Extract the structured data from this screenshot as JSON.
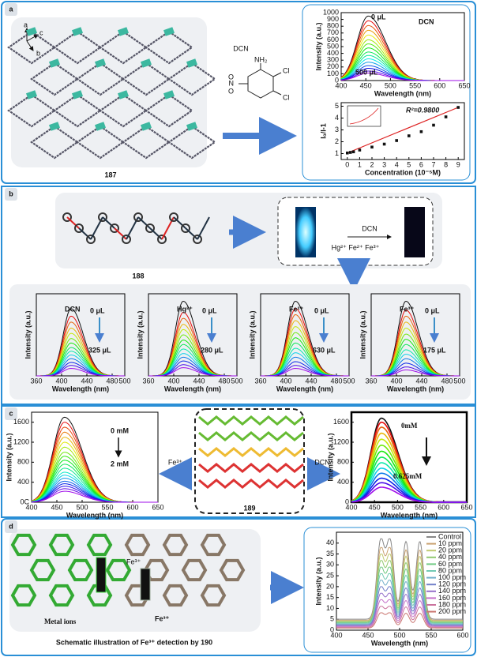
{
  "panels": [
    {
      "label": "a",
      "structure": "187",
      "crystal_axes": [
        "a",
        "c",
        "b"
      ],
      "reagent": "DCN",
      "molecule_atoms": [
        "Cl",
        "NH₂",
        "Cl",
        "O",
        "N",
        "O"
      ],
      "plots": [
        {
          "type": "line",
          "xlabel": "Wavelength (nm)",
          "ylabel": "Intensity (a.u.)",
          "xlim": [
            400,
            650
          ],
          "xticks": [
            400,
            450,
            500,
            550,
            600,
            650
          ],
          "ylim": [
            0,
            1000
          ],
          "yticks": [
            0,
            100,
            200,
            300,
            400,
            500,
            600,
            700,
            800,
            900,
            1000
          ],
          "peak": 455,
          "curves": [
            950,
            880,
            810,
            740,
            670,
            600,
            540,
            480,
            420,
            370,
            320,
            270,
            220,
            180,
            140,
            110
          ],
          "annotations": [
            "0 μL",
            "DCN",
            "500 μL"
          ]
        },
        {
          "type": "scatter",
          "xlabel": "Concentration (10⁻⁵M)",
          "ylabel": "I₀/I-1",
          "xlim": [
            -0.5,
            9.5
          ],
          "xticks": [
            0,
            1,
            2,
            3,
            4,
            5,
            6,
            7,
            8,
            9
          ],
          "ylim": [
            0.5,
            5.3
          ],
          "yticks": [
            1,
            2,
            3,
            4,
            5
          ],
          "x": [
            0,
            0.25,
            0.5,
            1,
            2,
            3,
            4,
            5,
            6,
            7,
            8,
            9
          ],
          "values": [
            1.05,
            1.1,
            1.15,
            1.3,
            1.55,
            1.8,
            2.1,
            2.5,
            2.85,
            3.4,
            4.1,
            4.9
          ],
          "annotations": [
            "R²=0.9800"
          ]
        }
      ]
    },
    {
      "label": "b",
      "structure": "188",
      "reagent": "DCN",
      "ions": "Hg²⁺ Fe²⁺ Fe³⁺",
      "plots": [
        {
          "type": "line",
          "xlabel": "Wavelength (nm)",
          "ylabel": "Intensity (a.u.)",
          "xlim": [
            360,
            500
          ],
          "xticks": [
            360,
            400,
            440,
            480,
            500
          ],
          "ylim": [
            0,
            110
          ],
          "peak": 415,
          "curves": [
            90,
            80,
            72,
            64,
            57,
            50,
            44,
            38,
            33,
            28,
            23,
            18,
            14,
            10
          ],
          "annotations": [
            "DCN",
            "0 μL",
            "325 μL"
          ]
        },
        {
          "type": "line",
          "xlabel": "Wavelength (nm)",
          "ylabel": "Intensity (a.u.)",
          "xlim": [
            360,
            500
          ],
          "xticks": [
            360,
            400,
            440,
            480,
            500
          ],
          "ylim": [
            0,
            110
          ],
          "peak": 415,
          "curves": [
            100,
            85,
            77,
            69,
            62,
            55,
            48,
            42,
            36,
            30,
            25,
            20,
            15,
            11
          ],
          "annotations": [
            "Hg²⁺",
            "0 μL",
            "280 μL"
          ]
        },
        {
          "type": "line",
          "xlabel": "Wavelength (nm)",
          "ylabel": "Intensity (a.u.)",
          "xlim": [
            360,
            500
          ],
          "xticks": [
            360,
            400,
            440,
            480,
            500
          ],
          "ylim": [
            0,
            110
          ],
          "peak": 415,
          "curves": [
            100,
            90,
            82,
            74,
            66,
            58,
            51,
            44,
            37,
            31,
            25,
            19,
            14,
            10
          ],
          "annotations": [
            "Fe²⁺",
            "0 μL",
            "630 μL"
          ]
        },
        {
          "type": "line",
          "xlabel": "Wavelength (nm)",
          "ylabel": "Intensity (a.u.)",
          "xlim": [
            360,
            500
          ],
          "xticks": [
            360,
            400,
            440,
            480,
            500
          ],
          "ylim": [
            0,
            110
          ],
          "peak": 415,
          "curves": [
            100,
            88,
            80,
            72,
            64,
            56,
            49,
            42,
            35,
            29,
            23,
            17,
            12,
            8
          ],
          "annotations": [
            "Fe³⁺",
            "0 μL",
            "175 μL"
          ]
        }
      ]
    },
    {
      "label": "c",
      "structure": "189",
      "reagents": [
        "Fe³⁺",
        "DCN"
      ],
      "plots": [
        {
          "type": "line",
          "xlabel": "Wavelength (nm)",
          "ylabel": "Intensity (a.u.)",
          "xlim": [
            400,
            650
          ],
          "xticks": [
            400,
            450,
            500,
            550,
            600,
            650
          ],
          "ylim": [
            0,
            1800
          ],
          "yticks": [
            {
              "value": 0,
              "label": "0C"
            },
            400,
            800,
            1200,
            1600
          ],
          "peak": 465,
          "curves": [
            1700,
            1600,
            1500,
            1400,
            1300,
            1200,
            1100,
            1000,
            920,
            840,
            760,
            680,
            600,
            540,
            480,
            420,
            370,
            320,
            270,
            220
          ],
          "annotations": [
            "0 mM",
            "2 mM"
          ]
        },
        {
          "type": "line",
          "xlabel": "Wavelength (nm)",
          "ylabel": "Intensity (a.u.)",
          "xlim": [
            400,
            650
          ],
          "xticks": [
            400,
            450,
            500,
            550,
            600,
            650
          ],
          "ylim": [
            0,
            1800
          ],
          "yticks": [
            0,
            400,
            800,
            1200,
            1600
          ],
          "peak": 465,
          "curves": [
            1680,
            1600,
            1500,
            1380,
            1260,
            1140,
            1020,
            900,
            790,
            680,
            580,
            480,
            390,
            300
          ],
          "annotations": [
            "0mM",
            "0.625mM"
          ]
        }
      ]
    },
    {
      "label": "d",
      "structure_texts": [
        "Metal ions",
        "Fe³⁺",
        "Fe³⁺"
      ],
      "caption": "Schematic illustration of Fe³⁺ detection by 190",
      "plots": [
        {
          "type": "line",
          "xlabel": "Wavelength (nm)",
          "ylabel": "Intensity (a.u.)",
          "xlim": [
            400,
            600
          ],
          "xticks": [
            400,
            450,
            500,
            550,
            600
          ],
          "ylim": [
            0,
            45
          ],
          "yticks": [
            0,
            5,
            10,
            15,
            20,
            25,
            30,
            35,
            40
          ],
          "peaks": [
            470,
            485,
            510,
            532
          ],
          "series": [
            {
              "name": "Control",
              "value": 42
            },
            {
              "name": "10 ppm",
              "value": 38
            },
            {
              "name": "20 ppm",
              "value": 35
            },
            {
              "name": "40 ppm",
              "value": 32
            },
            {
              "name": "60 ppm",
              "value": 29
            },
            {
              "name": "80 ppm",
              "value": 26
            },
            {
              "name": "100 ppm",
              "value": 23
            },
            {
              "name": "120 ppm",
              "value": 20
            },
            {
              "name": "140 ppm",
              "value": 17
            },
            {
              "name": "160 ppm",
              "value": 14
            },
            {
              "name": "180 ppm",
              "value": 11
            },
            {
              "name": "200 ppm",
              "value": 8
            }
          ]
        }
      ]
    }
  ]
}
